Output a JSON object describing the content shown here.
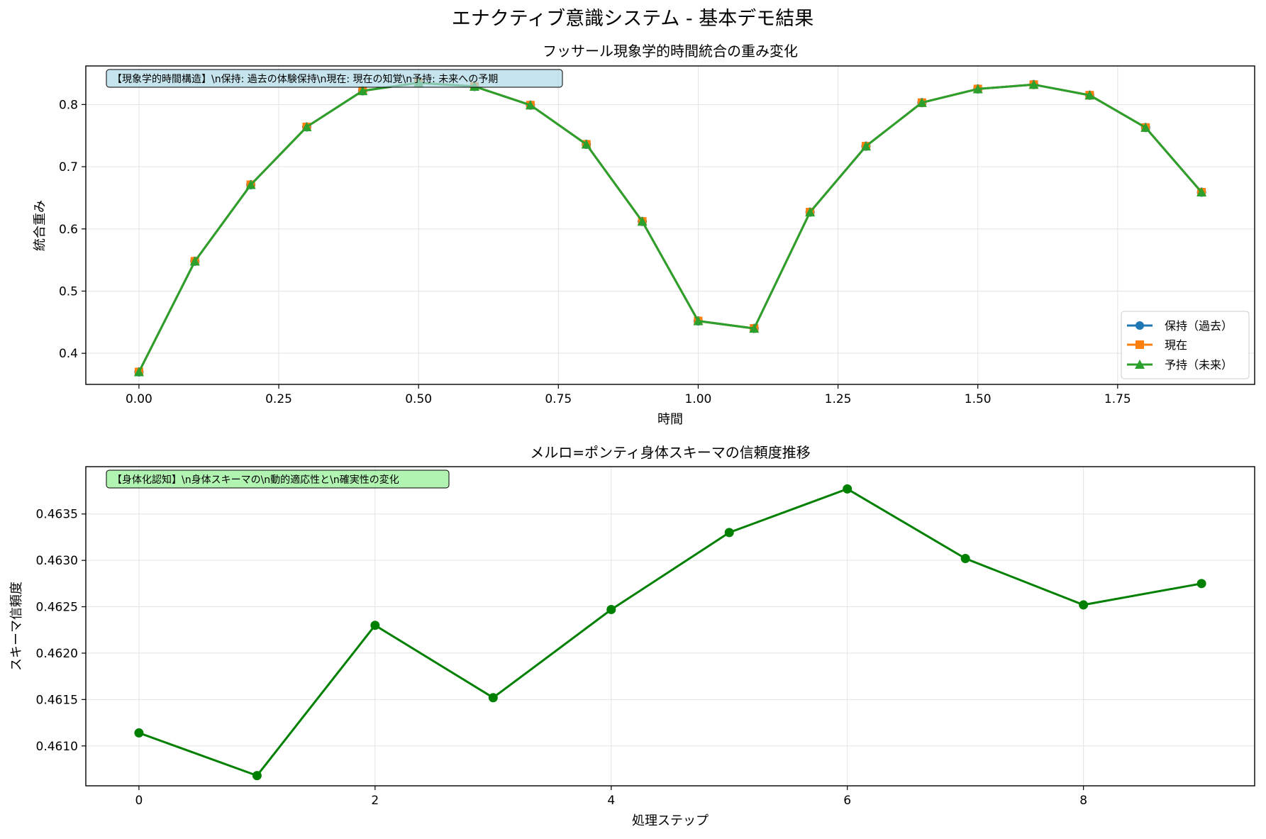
{
  "figure": {
    "title": "エナクティブ意識システム - 基本デモ結果"
  },
  "chart_data": [
    {
      "type": "line",
      "title": "フッサール現象学的時間統合の重み変化",
      "xlabel": "時間",
      "ylabel": "統合重み",
      "xlim": [
        -0.095,
        1.995
      ],
      "ylim": [
        0.35,
        0.862
      ],
      "xticks": [
        "0.00",
        "0.25",
        "0.50",
        "0.75",
        "1.00",
        "1.25",
        "1.50",
        "1.75"
      ],
      "yticks": [
        "0.4",
        "0.5",
        "0.6",
        "0.7",
        "0.8"
      ],
      "x": [
        0.0,
        0.1,
        0.2,
        0.3,
        0.4,
        0.5,
        0.6,
        0.7,
        0.8,
        0.9,
        1.0,
        1.1,
        1.2,
        1.3,
        1.4,
        1.5,
        1.6,
        1.7,
        1.8,
        1.9
      ],
      "series": [
        {
          "name": "保持（過去）",
          "color": "#1f77b4",
          "marker": "circle",
          "values": [
            0.37,
            0.548,
            0.671,
            0.764,
            0.822,
            0.835,
            0.829,
            0.799,
            0.736,
            0.612,
            0.452,
            0.44,
            0.627,
            0.733,
            0.803,
            0.825,
            0.832,
            0.815,
            0.763,
            0.659
          ]
        },
        {
          "name": "現在",
          "color": "#ff7f0e",
          "marker": "square",
          "values": [
            0.37,
            0.548,
            0.671,
            0.764,
            0.822,
            0.835,
            0.829,
            0.799,
            0.736,
            0.612,
            0.452,
            0.44,
            0.627,
            0.733,
            0.803,
            0.825,
            0.832,
            0.815,
            0.763,
            0.659
          ]
        },
        {
          "name": "予持（未来）",
          "color": "#2ca02c",
          "marker": "triangle",
          "values": [
            0.37,
            0.548,
            0.671,
            0.764,
            0.822,
            0.835,
            0.829,
            0.799,
            0.736,
            0.612,
            0.452,
            0.44,
            0.627,
            0.733,
            0.803,
            0.825,
            0.832,
            0.815,
            0.763,
            0.659
          ]
        }
      ],
      "annotation": "【現象学的時間構造】\\n保持: 過去の体験保持\\n現在: 現在の知覚\\n予持: 未来への予期",
      "annotation_bg": "#add8e6",
      "legend": "lower-right",
      "grid": true
    },
    {
      "type": "line",
      "title": "メルロ=ポンティ身体スキーマの信頼度推移",
      "xlabel": "処理ステップ",
      "ylabel": "スキーマ信頼度",
      "xlim": [
        -0.45,
        9.45
      ],
      "ylim": [
        0.46057,
        0.46401
      ],
      "xticks": [
        "0",
        "2",
        "4",
        "6",
        "8"
      ],
      "yticks": [
        "0.4610",
        "0.4615",
        "0.4620",
        "0.4625",
        "0.4630",
        "0.4635"
      ],
      "x": [
        0,
        1,
        2,
        3,
        4,
        5,
        6,
        7,
        8,
        9
      ],
      "series": [
        {
          "color": "#008000",
          "marker": "circle",
          "values": [
            0.46114,
            0.46068,
            0.4623,
            0.46152,
            0.46247,
            0.4633,
            0.46377,
            0.46302,
            0.46252,
            0.46275
          ]
        }
      ],
      "annotation": "【身体化認知】\\n身体スキーマの\\n動的適応性と\\n確実性の変化",
      "annotation_bg": "#90ee90",
      "grid": true
    }
  ]
}
